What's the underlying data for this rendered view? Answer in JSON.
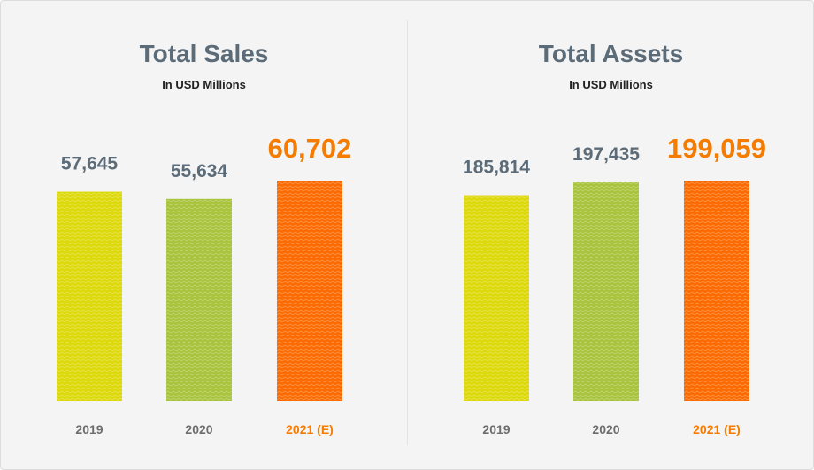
{
  "colors": {
    "yellow": "#dcd80a",
    "green": "#a8c43c",
    "orange": "#fb6a00",
    "label": "#5b6b78",
    "highlight": "#f57c00",
    "category": "#6d6d6d"
  },
  "chart_data": [
    {
      "type": "bar",
      "title": "Total Sales",
      "subtitle": "In USD Millions",
      "categories": [
        "2019",
        "2020",
        "2021 (E)"
      ],
      "values": [
        57645,
        55634,
        60702
      ],
      "value_labels": [
        "57,645",
        "55,634",
        "60,702"
      ],
      "bar_colors": [
        "#dcd80a",
        "#a8c43c",
        "#fb6a00"
      ],
      "highlight_index": 2,
      "ylim": [
        0,
        60702
      ],
      "xlabel": "",
      "ylabel": "",
      "grid": false
    },
    {
      "type": "bar",
      "title": "Total Assets",
      "subtitle": "In USD Millions",
      "categories": [
        "2019",
        "2020",
        "2021 (E)"
      ],
      "values": [
        185814,
        197435,
        199059
      ],
      "value_labels": [
        "185,814",
        "197,435",
        "199,059"
      ],
      "bar_colors": [
        "#dcd80a",
        "#a8c43c",
        "#fb6a00"
      ],
      "highlight_index": 2,
      "ylim": [
        0,
        199059
      ],
      "xlabel": "",
      "ylabel": "",
      "grid": false
    }
  ]
}
